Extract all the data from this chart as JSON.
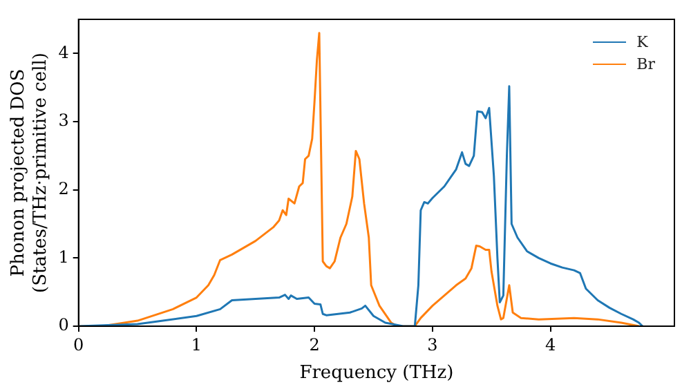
{
  "chart_data": {
    "type": "line",
    "xlabel": "Frequency (THz)",
    "ylabel": "Phonon projected DOS\n(States/THz·primitive cell)",
    "xlim": [
      0,
      5.05
    ],
    "xticks": [
      0,
      1,
      2,
      3,
      4
    ],
    "ylim": [
      0,
      4.5
    ],
    "yticks": [
      0,
      1,
      2,
      3,
      4
    ],
    "grid": false,
    "legend": "top right",
    "marker": "none",
    "line_style": "solid",
    "series": [
      {
        "name": "K",
        "color": "#1f77b4",
        "x": [
          0,
          0.5,
          1.0,
          1.2,
          1.3,
          1.5,
          1.7,
          1.75,
          1.78,
          1.8,
          1.85,
          1.95,
          2.0,
          2.05,
          2.07,
          2.1,
          2.3,
          2.4,
          2.43,
          2.5,
          2.6,
          2.75,
          2.85,
          2.88,
          2.9,
          2.93,
          2.96,
          3.0,
          3.1,
          3.2,
          3.25,
          3.28,
          3.31,
          3.35,
          3.38,
          3.42,
          3.45,
          3.48,
          3.52,
          3.55,
          3.57,
          3.6,
          3.63,
          3.65,
          3.67,
          3.72,
          3.8,
          3.9,
          4.0,
          4.1,
          4.2,
          4.25,
          4.3,
          4.4,
          4.5,
          4.6,
          4.7,
          4.75,
          4.78
        ],
        "values": [
          0,
          0.03,
          0.15,
          0.25,
          0.38,
          0.4,
          0.42,
          0.46,
          0.4,
          0.45,
          0.4,
          0.42,
          0.33,
          0.32,
          0.18,
          0.16,
          0.2,
          0.26,
          0.3,
          0.15,
          0.05,
          0,
          0,
          0.6,
          1.7,
          1.82,
          1.8,
          1.88,
          2.05,
          2.3,
          2.55,
          2.38,
          2.35,
          2.5,
          3.15,
          3.14,
          3.05,
          3.2,
          2.2,
          1.0,
          0.35,
          0.45,
          2.5,
          3.52,
          1.5,
          1.3,
          1.1,
          1.0,
          0.92,
          0.86,
          0.82,
          0.78,
          0.55,
          0.38,
          0.27,
          0.18,
          0.1,
          0.05,
          0
        ]
      },
      {
        "name": "Br",
        "color": "#ff7f0e",
        "x": [
          0,
          0.2,
          0.5,
          0.8,
          1.0,
          1.1,
          1.15,
          1.2,
          1.3,
          1.5,
          1.65,
          1.7,
          1.73,
          1.76,
          1.78,
          1.83,
          1.87,
          1.9,
          1.92,
          1.95,
          1.98,
          2.0,
          2.02,
          2.04,
          2.07,
          2.1,
          2.13,
          2.17,
          2.22,
          2.27,
          2.32,
          2.35,
          2.38,
          2.42,
          2.46,
          2.48,
          2.55,
          2.65,
          2.7,
          2.85,
          2.9,
          3.0,
          3.1,
          3.2,
          3.28,
          3.33,
          3.37,
          3.4,
          3.45,
          3.48,
          3.5,
          3.55,
          3.58,
          3.6,
          3.65,
          3.68,
          3.75,
          3.9,
          4.2,
          4.4,
          4.6,
          4.75
        ],
        "values": [
          0,
          0,
          0.08,
          0.25,
          0.42,
          0.6,
          0.75,
          0.97,
          1.05,
          1.25,
          1.45,
          1.55,
          1.7,
          1.63,
          1.87,
          1.8,
          2.05,
          2.1,
          2.45,
          2.5,
          2.75,
          3.3,
          3.9,
          4.3,
          0.95,
          0.88,
          0.85,
          0.95,
          1.3,
          1.5,
          1.9,
          2.57,
          2.45,
          1.8,
          1.3,
          0.6,
          0.3,
          0.05,
          0,
          0,
          0.12,
          0.3,
          0.45,
          0.6,
          0.7,
          0.85,
          1.18,
          1.17,
          1.12,
          1.12,
          0.8,
          0.3,
          0.1,
          0.12,
          0.6,
          0.2,
          0.12,
          0.1,
          0.12,
          0.1,
          0.05,
          0
        ]
      }
    ]
  }
}
